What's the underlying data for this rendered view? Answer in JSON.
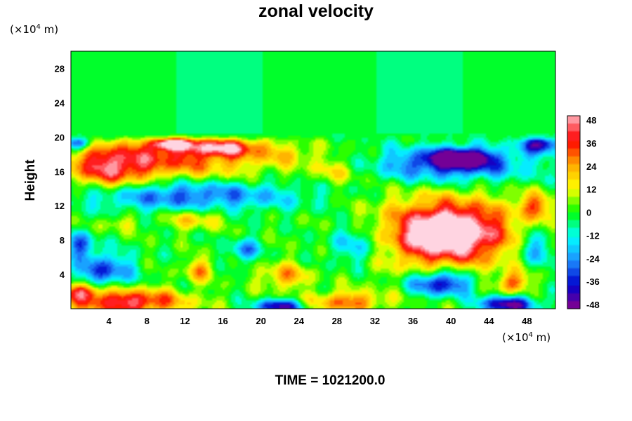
{
  "chart_data": {
    "type": "heatmap",
    "title": "zonal velocity",
    "ylabel": "Height",
    "xlabel": "",
    "x_unit_prefix": "(×10",
    "x_unit_exp": "4",
    "x_unit_suffix": " m)",
    "y_unit_prefix": "(×10",
    "y_unit_exp": "4",
    "y_unit_suffix": " m)",
    "xlim": [
      0,
      51
    ],
    "ylim": [
      0,
      30
    ],
    "x_ticks": [
      4,
      8,
      12,
      16,
      20,
      24,
      28,
      32,
      36,
      40,
      44,
      48
    ],
    "y_ticks": [
      4,
      8,
      12,
      16,
      20,
      24,
      28
    ],
    "colorbar": {
      "range": [
        -50,
        50
      ],
      "ticks": [
        48,
        36,
        24,
        12,
        0,
        -12,
        -24,
        -36,
        -48
      ],
      "colormap": [
        "#8b008b",
        "#0000cd",
        "#1e90ff",
        "#00ffff",
        "#00ff00",
        "#ffff00",
        "#ffa500",
        "#ff0000",
        "#ffb6c1"
      ]
    },
    "features": [
      {
        "x": 40,
        "y": 9,
        "value": 46,
        "rx": 5,
        "ry": 2.8
      },
      {
        "x": 39,
        "y": 8.5,
        "value": 30,
        "rx": 8,
        "ry": 5
      },
      {
        "x": 10,
        "y": 17.5,
        "value": 32,
        "rx": 11,
        "ry": 2.5
      },
      {
        "x": 10.5,
        "y": 19.2,
        "value": 46,
        "rx": 2,
        "ry": 0.7
      },
      {
        "x": 4,
        "y": 16,
        "value": 28,
        "rx": 4,
        "ry": 2.5
      },
      {
        "x": 16,
        "y": 18.8,
        "value": 34,
        "rx": 4,
        "ry": 1
      },
      {
        "x": 12,
        "y": 13.2,
        "value": -30,
        "rx": 12,
        "ry": 1.8
      },
      {
        "x": 40,
        "y": 16.8,
        "value": -38,
        "rx": 8,
        "ry": 2
      },
      {
        "x": 41,
        "y": 17.6,
        "value": -46,
        "rx": 3,
        "ry": 1
      },
      {
        "x": 49.5,
        "y": 19.2,
        "value": -44,
        "rx": 2,
        "ry": 1
      },
      {
        "x": 0.8,
        "y": 19.3,
        "value": -40,
        "rx": 1.5,
        "ry": 0.8
      },
      {
        "x": 3.5,
        "y": 4.5,
        "value": -32,
        "rx": 3,
        "ry": 2
      },
      {
        "x": 1,
        "y": 7.5,
        "value": -28,
        "rx": 1.5,
        "ry": 1.5
      },
      {
        "x": 18.3,
        "y": 6.8,
        "value": -26,
        "rx": 1.5,
        "ry": 1.3
      },
      {
        "x": 30,
        "y": 7.5,
        "value": -22,
        "rx": 3,
        "ry": 2.5
      },
      {
        "x": 39,
        "y": 3,
        "value": -46,
        "rx": 3.5,
        "ry": 1.5
      },
      {
        "x": 46,
        "y": 0.5,
        "value": -48,
        "rx": 3,
        "ry": 1
      },
      {
        "x": 22,
        "y": 0.3,
        "value": -44,
        "rx": 2.5,
        "ry": 0.8
      },
      {
        "x": 29,
        "y": 0.8,
        "value": 30,
        "rx": 4,
        "ry": 1.2
      },
      {
        "x": 6,
        "y": 0.8,
        "value": 44,
        "rx": 6,
        "ry": 1.5
      },
      {
        "x": 1,
        "y": 2,
        "value": 34,
        "rx": 2,
        "ry": 1
      },
      {
        "x": 22.5,
        "y": 3.8,
        "value": 24,
        "rx": 2.5,
        "ry": 1.5
      },
      {
        "x": 13.5,
        "y": 4.5,
        "value": 24,
        "rx": 1.5,
        "ry": 1.3
      },
      {
        "x": 13,
        "y": 10.5,
        "value": 20,
        "rx": 3,
        "ry": 1.2
      },
      {
        "x": 46.5,
        "y": 3,
        "value": 30,
        "rx": 1.5,
        "ry": 1.2
      },
      {
        "x": 49,
        "y": 12,
        "value": 26,
        "rx": 2,
        "ry": 1.5
      },
      {
        "x": 49,
        "y": 7,
        "value": -24,
        "rx": 2,
        "ry": 2
      },
      {
        "x": 28,
        "y": 16,
        "value": 14,
        "rx": 3,
        "ry": 1.5
      },
      {
        "x": 23,
        "y": 18,
        "value": 10,
        "rx": 3,
        "ry": 1
      },
      {
        "x": 5,
        "y": 10,
        "value": 12,
        "rx": 2,
        "ry": 1
      }
    ],
    "upper_region_value": -4,
    "upper_region_above": 20.5
  },
  "footer": {
    "time_label": "TIME = 1021200.0"
  }
}
